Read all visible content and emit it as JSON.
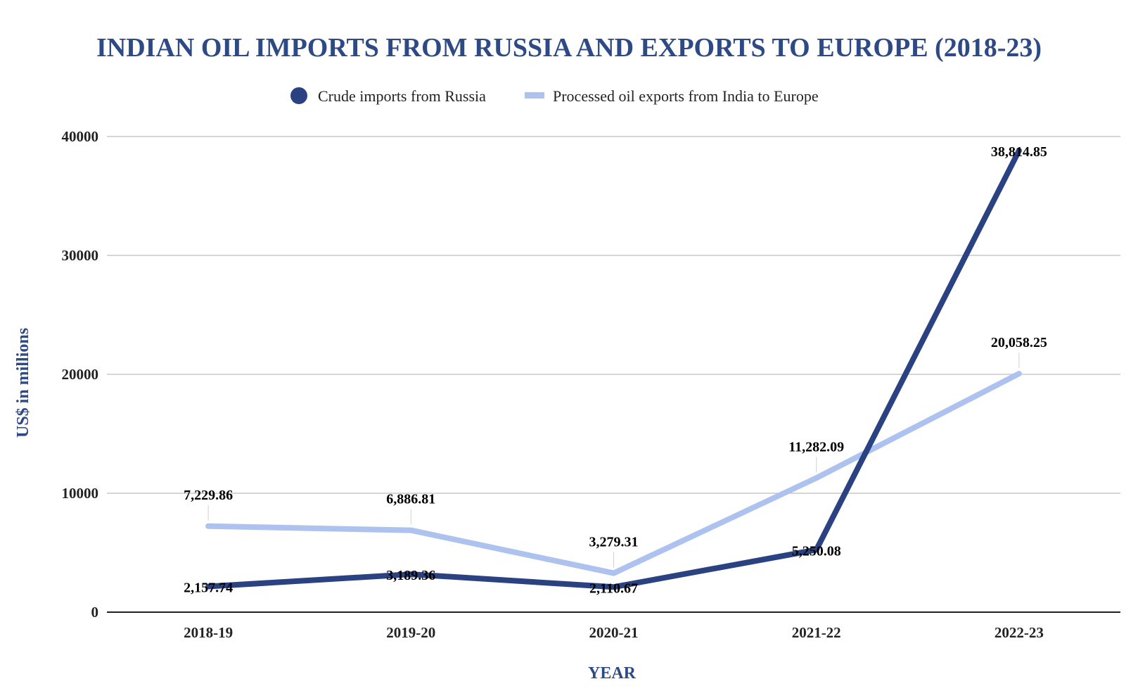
{
  "chart_data": {
    "type": "line",
    "title": "INDIAN OIL IMPORTS FROM RUSSIA AND EXPORTS TO EUROPE (2018-23)",
    "xlabel": "YEAR",
    "ylabel": "US$ in millions",
    "categories": [
      "2018-19",
      "2019-20",
      "2020-21",
      "2021-22",
      "2022-23"
    ],
    "ylim": [
      0,
      40000
    ],
    "yticks": [
      "0",
      "10000",
      "20000",
      "30000",
      "40000"
    ],
    "yticks_values": [
      0,
      10000,
      20000,
      30000,
      40000
    ],
    "grid": true,
    "legend_position": "top",
    "series": [
      {
        "name": "Crude imports from Russia",
        "color": "#2b4282",
        "values": [
          2157.74,
          3189.36,
          2110.67,
          5250.08,
          38814.85
        ],
        "labels": [
          "2,157.74",
          "3,189.36",
          "2,110.67",
          "5,250.08",
          "38,814.85"
        ]
      },
      {
        "name": "Processed oil exports from India to Europe",
        "color": "#adc2ef",
        "values": [
          7229.86,
          6886.81,
          3279.31,
          11282.09,
          20058.25
        ],
        "labels": [
          "7,229.86",
          "6,886.81",
          "3,279.31",
          "11,282.09",
          "20,058.25"
        ]
      }
    ]
  }
}
